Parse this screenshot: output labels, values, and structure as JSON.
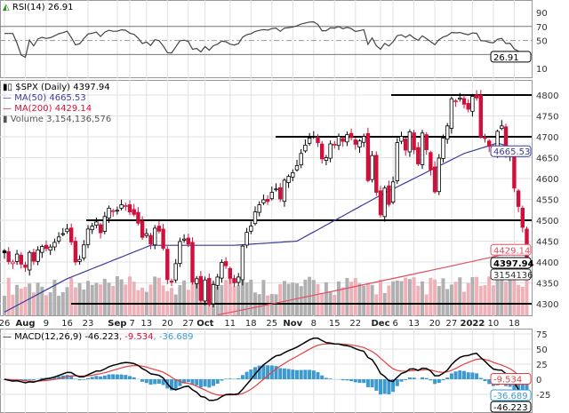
{
  "chart_data": {
    "type": "candlestick",
    "symbol_label": "$SPX (Daily)",
    "last": "4397.94",
    "ma50_label": "MA(50)",
    "ma50": "4665.53",
    "ma200_label": "MA(200)",
    "ma200": "4429.14",
    "volume_label": "Volume",
    "volume": "3,154,136,576",
    "volume_tag": "3154136",
    "rsi_label": "RSI(14)",
    "rsi": "26.91",
    "macd_label": "MACD(12,26,9)",
    "macd": "-46.223",
    "macd_signal": "-9.534",
    "macd_hist": "-36.689",
    "macd_sep1": ", ",
    "macd_sep2": ", ",
    "price_ticks": [
      4300,
      4350,
      4400,
      4450,
      4500,
      4550,
      4600,
      4650,
      4700,
      4750,
      4800
    ],
    "rsi_ticks": [
      10,
      50,
      70,
      90
    ],
    "macd_ticks": [
      75,
      50,
      25,
      0,
      -25
    ],
    "support_resistance": [
      4800,
      4700,
      4500,
      4300
    ],
    "date_labels": [
      {
        "t": "26",
        "i": 0
      },
      {
        "t": "Aug",
        "i": 5,
        "b": 1
      },
      {
        "t": "9",
        "i": 10
      },
      {
        "t": "16",
        "i": 15
      },
      {
        "t": "23",
        "i": 20
      },
      {
        "t": "Sep",
        "i": 27,
        "b": 1
      },
      {
        "t": "7",
        "i": 30
      },
      {
        "t": "13",
        "i": 34
      },
      {
        "t": "20",
        "i": 39
      },
      {
        "t": "27",
        "i": 44
      },
      {
        "t": "Oct",
        "i": 48,
        "b": 1
      },
      {
        "t": "11",
        "i": 54
      },
      {
        "t": "18",
        "i": 59
      },
      {
        "t": "25",
        "i": 64
      },
      {
        "t": "Nov",
        "i": 69,
        "b": 1
      },
      {
        "t": "8",
        "i": 74
      },
      {
        "t": "15",
        "i": 79
      },
      {
        "t": "22",
        "i": 84
      },
      {
        "t": "Dec",
        "i": 90,
        "b": 1
      },
      {
        "t": "6",
        "i": 93
      },
      {
        "t": "13",
        "i": 98
      },
      {
        "t": "20",
        "i": 103
      },
      {
        "t": "27",
        "i": 107
      },
      {
        "t": "2022",
        "i": 112,
        "b": 1
      },
      {
        "t": "10",
        "i": 117
      },
      {
        "t": "18",
        "i": 122
      }
    ],
    "closes": [
      4422,
      4401,
      4400,
      4419,
      4395,
      4387,
      4423,
      4402,
      4429,
      4437,
      4432,
      4436,
      4447,
      4460,
      4468,
      4479,
      4448,
      4400,
      4406,
      4441,
      4479,
      4486,
      4496,
      4470,
      4509,
      4529,
      4523,
      4524,
      4537,
      4535,
      4520,
      4514,
      4493,
      4459,
      4468,
      4443,
      4481,
      4474,
      4433,
      4358,
      4354,
      4396,
      4449,
      4455,
      4443,
      4352,
      4360,
      4308,
      4357,
      4300,
      4346,
      4364,
      4399,
      4391,
      4361,
      4350,
      4364,
      4438,
      4471,
      4486,
      4520,
      4537,
      4549,
      4545,
      4567,
      4575,
      4551,
      4596,
      4605,
      4614,
      4631,
      4660,
      4680,
      4697,
      4701,
      4686,
      4647,
      4650,
      4683,
      4682,
      4701,
      4689,
      4705,
      4698,
      4682,
      4690,
      4701,
      4595,
      4655,
      4567,
      4513,
      4577,
      4538,
      4592,
      4686,
      4701,
      4668,
      4712,
      4669,
      4635,
      4709,
      4669,
      4621,
      4568,
      4649,
      4697,
      4726,
      4791,
      4786,
      4793,
      4778,
      4766,
      4797,
      4793,
      4700,
      4696,
      4677,
      4670,
      4713,
      4726,
      4660,
      4662,
      4577,
      4533,
      4483,
      4398
    ],
    "colors": {
      "up": "#000000",
      "down": "#d0103a",
      "ma50": "#3b3b9e",
      "ma200": "#e05060",
      "hist": "#3c9ad0",
      "vol_up": "#b0b0b0",
      "vol_down": "#f0b0b8"
    }
  }
}
